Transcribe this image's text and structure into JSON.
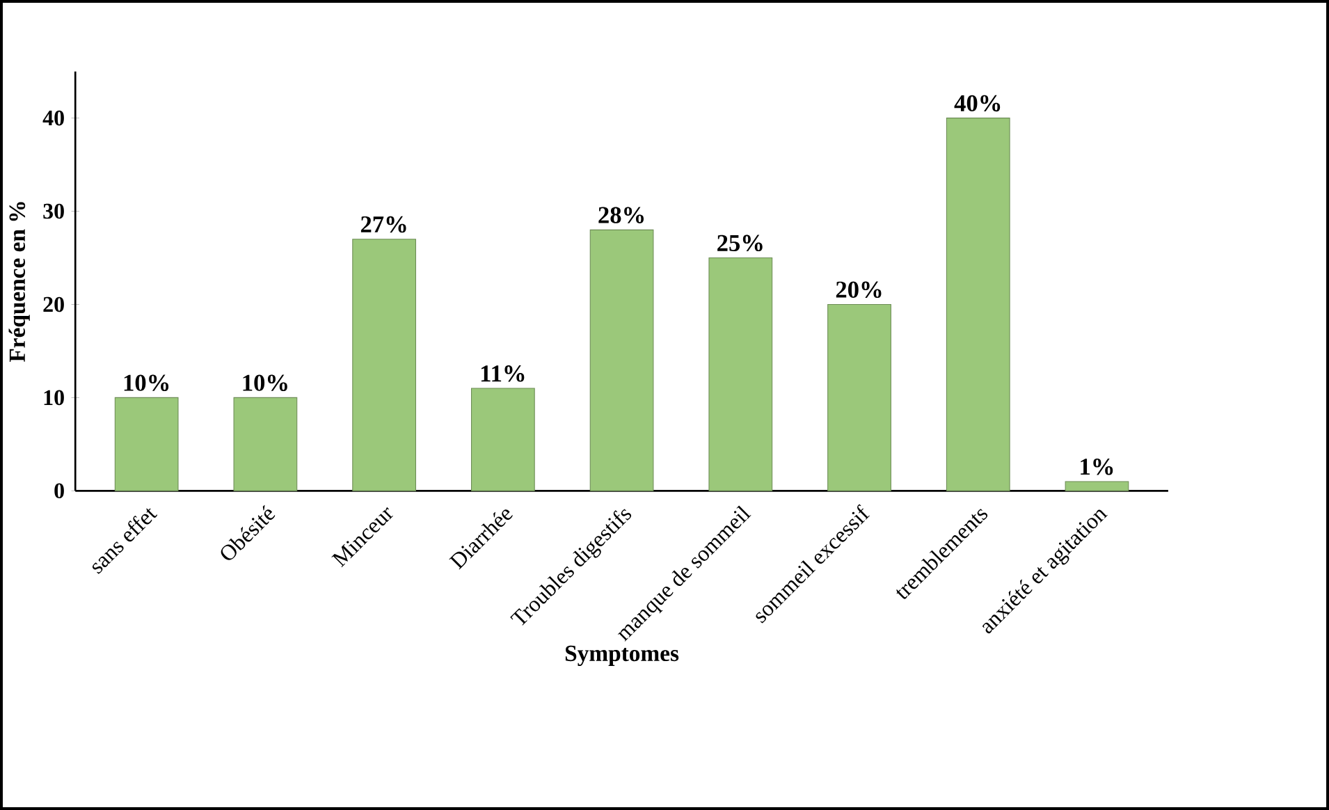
{
  "chart_data": {
    "type": "bar",
    "xlabel": "Symptomes",
    "ylabel": "Fréquence en %",
    "categories": [
      "sans effet",
      "Obésité",
      "Minceur",
      "Diarrhée",
      "Troubles digestifs",
      "manque de sommeil",
      "sommeil excessif",
      "tremblements",
      "anxiété et agitation"
    ],
    "values": [
      10,
      10,
      27,
      11,
      28,
      25,
      20,
      40,
      1
    ],
    "value_labels": [
      "10%",
      "10%",
      "27%",
      "11%",
      "28%",
      "25%",
      "20%",
      "40%",
      "1%"
    ],
    "color": "#9bc87a",
    "ylim": [
      0,
      45
    ],
    "yticks": [
      0,
      10,
      20,
      30,
      40
    ],
    "grid": false
  }
}
